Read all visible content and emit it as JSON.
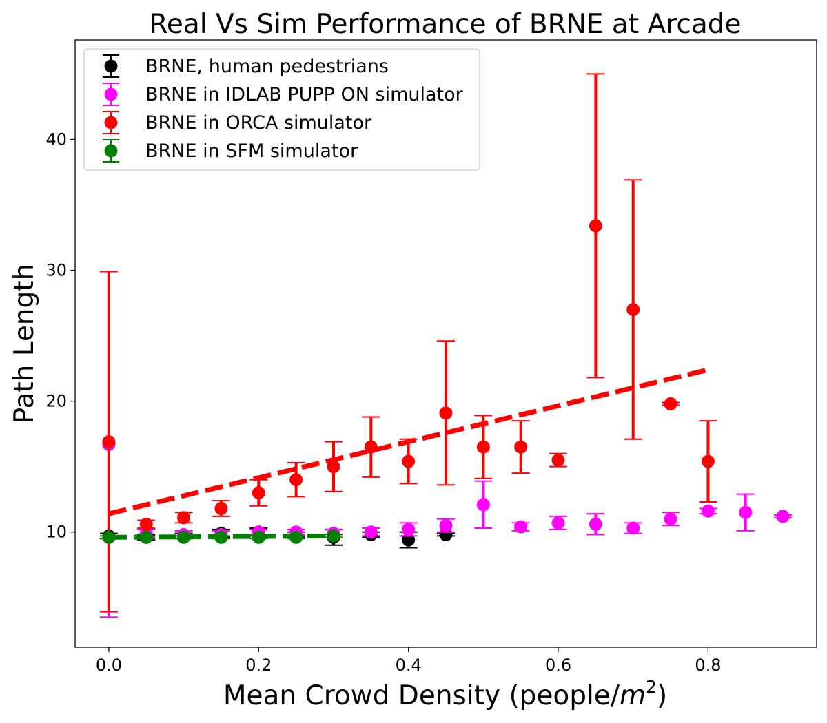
{
  "chart_data": {
    "type": "scatter",
    "title": "Real Vs Sim Performance of BRNE at Arcade",
    "xlabel": "Mean Crowd Density (people/",
    "xlabel_unit_base": "m",
    "xlabel_unit_exp": "2",
    "xlabel_suffix": ")",
    "ylabel": "Path Length",
    "xlim": [
      -0.045,
      0.945
    ],
    "ylim": [
      1.2,
      47.6
    ],
    "xticks": [
      0.0,
      0.2,
      0.4,
      0.6,
      0.8
    ],
    "xtick_labels": [
      "0.0",
      "0.2",
      "0.4",
      "0.6",
      "0.8"
    ],
    "yticks": [
      10,
      20,
      30,
      40
    ],
    "ytick_labels": [
      "10",
      "20",
      "30",
      "40"
    ],
    "grid": false,
    "legend_position": "top-left",
    "series": [
      {
        "name": "BRNE, human pedestrians",
        "color": "#000000",
        "points": [
          {
            "x": 0.0,
            "y": 9.7,
            "err": 0.2
          },
          {
            "x": 0.05,
            "y": 9.6,
            "err": 0.2
          },
          {
            "x": 0.1,
            "y": 9.7,
            "err": 0.2
          },
          {
            "x": 0.15,
            "y": 9.9,
            "err": 0.3
          },
          {
            "x": 0.2,
            "y": 10.0,
            "err": 0.3
          },
          {
            "x": 0.25,
            "y": 9.8,
            "err": 0.2
          },
          {
            "x": 0.3,
            "y": 9.6,
            "err": 0.6
          },
          {
            "x": 0.35,
            "y": 9.8,
            "err": 0.2
          },
          {
            "x": 0.4,
            "y": 9.4,
            "err": 0.6
          },
          {
            "x": 0.45,
            "y": 9.8,
            "err": 0.1
          }
        ]
      },
      {
        "name": "BRNE in IDLAB PUPP ON simulator",
        "color": "#ff00ff",
        "points": [
          {
            "x": 0.0,
            "y": 16.7,
            "err": 13.2
          },
          {
            "x": 0.05,
            "y": 9.9,
            "err": 0.3
          },
          {
            "x": 0.1,
            "y": 9.8,
            "err": 0.3
          },
          {
            "x": 0.15,
            "y": 9.8,
            "err": 0.3
          },
          {
            "x": 0.2,
            "y": 10.0,
            "err": 0.2
          },
          {
            "x": 0.25,
            "y": 10.0,
            "err": 0.2
          },
          {
            "x": 0.3,
            "y": 9.9,
            "err": 0.3
          },
          {
            "x": 0.35,
            "y": 10.0,
            "err": 0.3
          },
          {
            "x": 0.4,
            "y": 10.2,
            "err": 0.5
          },
          {
            "x": 0.45,
            "y": 10.5,
            "err": 0.5
          },
          {
            "x": 0.5,
            "y": 12.1,
            "err": 1.8
          },
          {
            "x": 0.55,
            "y": 10.4,
            "err": 0.3
          },
          {
            "x": 0.6,
            "y": 10.7,
            "err": 0.5
          },
          {
            "x": 0.65,
            "y": 10.6,
            "err": 0.8
          },
          {
            "x": 0.7,
            "y": 10.3,
            "err": 0.4
          },
          {
            "x": 0.75,
            "y": 11.0,
            "err": 0.5
          },
          {
            "x": 0.8,
            "y": 11.6,
            "err": 0.2
          },
          {
            "x": 0.85,
            "y": 11.5,
            "err": 1.4
          },
          {
            "x": 0.9,
            "y": 11.2,
            "err": 0.1
          }
        ]
      },
      {
        "name": "BRNE in ORCA simulator",
        "color": "#ff0000",
        "trend": {
          "x": [
            0.0,
            0.8
          ],
          "y": [
            11.4,
            22.4
          ]
        },
        "points": [
          {
            "x": 0.0,
            "y": 16.9,
            "err": 13.0
          },
          {
            "x": 0.05,
            "y": 10.6,
            "err": 0.3
          },
          {
            "x": 0.1,
            "y": 11.1,
            "err": 0.4
          },
          {
            "x": 0.15,
            "y": 11.8,
            "err": 0.6
          },
          {
            "x": 0.2,
            "y": 13.0,
            "err": 1.0
          },
          {
            "x": 0.25,
            "y": 14.0,
            "err": 1.3
          },
          {
            "x": 0.3,
            "y": 15.0,
            "err": 1.9
          },
          {
            "x": 0.35,
            "y": 16.5,
            "err": 2.3
          },
          {
            "x": 0.4,
            "y": 15.4,
            "err": 1.7
          },
          {
            "x": 0.45,
            "y": 19.1,
            "err": 5.5
          },
          {
            "x": 0.5,
            "y": 16.5,
            "err": 2.4
          },
          {
            "x": 0.55,
            "y": 16.5,
            "err": 2.0
          },
          {
            "x": 0.6,
            "y": 15.5,
            "err": 0.5
          },
          {
            "x": 0.65,
            "y": 33.4,
            "err": 11.6
          },
          {
            "x": 0.7,
            "y": 27.0,
            "err": 9.9
          },
          {
            "x": 0.75,
            "y": 19.8,
            "err": 0.1
          },
          {
            "x": 0.8,
            "y": 15.4,
            "err": 3.1
          }
        ]
      },
      {
        "name": "BRNE in SFM simulator",
        "color": "#008000",
        "trend": {
          "x": [
            0.0,
            0.3
          ],
          "y": [
            9.6,
            9.7
          ]
        },
        "points": [
          {
            "x": 0.0,
            "y": 9.6,
            "err": 0.1
          },
          {
            "x": 0.05,
            "y": 9.6,
            "err": 0.1
          },
          {
            "x": 0.1,
            "y": 9.6,
            "err": 0.1
          },
          {
            "x": 0.15,
            "y": 9.6,
            "err": 0.1
          },
          {
            "x": 0.2,
            "y": 9.6,
            "err": 0.1
          },
          {
            "x": 0.25,
            "y": 9.6,
            "err": 0.1
          },
          {
            "x": 0.3,
            "y": 9.7,
            "err": 0.1
          }
        ]
      }
    ]
  }
}
